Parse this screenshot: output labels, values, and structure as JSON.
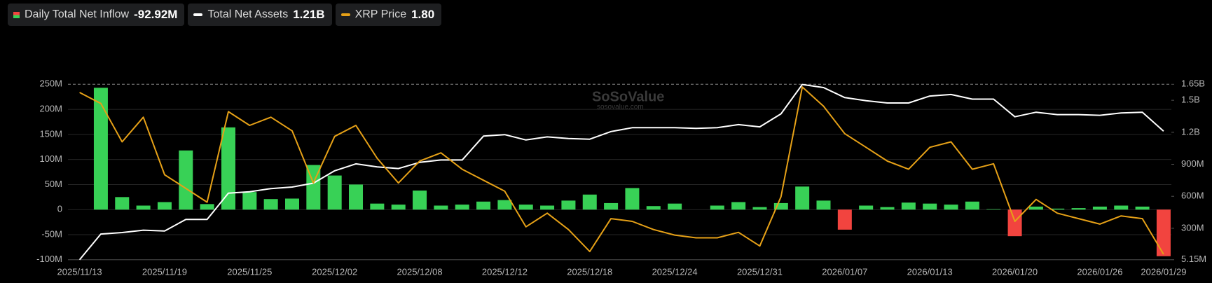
{
  "chart_data": {
    "type": "bar",
    "categories": [
      "2025/11/13",
      null,
      null,
      null,
      "2025/11/19",
      null,
      null,
      null,
      "2025/11/25",
      null,
      null,
      null,
      "2025/12/02",
      null,
      null,
      null,
      "2025/12/08",
      null,
      null,
      null,
      "2025/12/12",
      null,
      null,
      null,
      "2025/12/18",
      null,
      null,
      null,
      "2025/12/24",
      null,
      null,
      null,
      "2025/12/31",
      null,
      null,
      null,
      "2026/01/07",
      null,
      null,
      null,
      "2026/01/13",
      null,
      null,
      null,
      "2026/01/20",
      null,
      null,
      null,
      "2026/01/26",
      null,
      null,
      "2026/01/29"
    ],
    "series": [
      {
        "name": "Daily Total Net Inflow",
        "type": "bar",
        "latest_label": "-92.92M",
        "color": "#38d156",
        "negative_color": "#f2443f",
        "values": [
          null,
          243,
          25,
          8,
          15,
          118,
          11,
          164,
          35,
          21,
          22,
          89,
          68,
          50,
          12,
          10,
          38,
          8,
          10,
          16,
          19,
          10,
          8,
          18,
          30,
          13,
          43,
          7,
          12,
          0,
          8,
          15,
          5,
          13,
          46,
          18,
          -40,
          8,
          5,
          14,
          12,
          10,
          16,
          1,
          -53,
          6,
          2,
          3,
          6,
          8,
          6,
          -92.92
        ]
      },
      {
        "name": "Total Net Assets",
        "type": "line",
        "axis": "y2",
        "latest_label": "1.21B",
        "color": "#ffffff",
        "values": [
          5.15,
          246,
          260,
          282,
          275,
          383,
          383,
          629,
          643,
          672,
          687,
          723,
          839,
          904,
          875,
          860,
          918,
          940,
          940,
          1164,
          1178,
          1128,
          1157,
          1142,
          1135,
          1207,
          1243,
          1243,
          1243,
          1236,
          1243,
          1272,
          1251,
          1373,
          1648,
          1619,
          1525,
          1496,
          1475,
          1475,
          1540,
          1554,
          1511,
          1511,
          1345,
          1388,
          1366,
          1366,
          1359,
          1381,
          1388,
          1210
        ]
      },
      {
        "name": "XRP Price",
        "type": "line",
        "axis": "y3",
        "latest_label": "1.80",
        "color": "#e6a117",
        "values": [
          2.39,
          2.35,
          2.21,
          2.3,
          2.09,
          2.04,
          1.99,
          2.32,
          2.27,
          2.3,
          2.25,
          2.06,
          2.23,
          2.27,
          2.15,
          2.06,
          2.14,
          2.17,
          2.11,
          2.07,
          2.03,
          1.9,
          1.95,
          1.89,
          1.81,
          1.93,
          1.92,
          1.89,
          1.87,
          1.86,
          1.86,
          1.88,
          1.83,
          2.01,
          2.41,
          2.34,
          2.24,
          2.19,
          2.14,
          2.11,
          2.19,
          2.21,
          2.11,
          2.13,
          1.92,
          2.0,
          1.95,
          1.93,
          1.91,
          1.94,
          1.93,
          1.8
        ]
      }
    ],
    "ylim": [
      -100,
      250
    ],
    "yticks": [
      {
        "value": -100,
        "label": "-100M"
      },
      {
        "value": -50,
        "label": "-50M"
      },
      0,
      {
        "value": 50,
        "label": "50M"
      },
      {
        "value": 100,
        "label": "100M"
      },
      {
        "value": 150,
        "label": "150M"
      },
      {
        "value": 200,
        "label": "200M"
      },
      {
        "value": 250,
        "label": "250M"
      }
    ],
    "y2lim": [
      5.15,
      1650
    ],
    "y2ticks": [
      {
        "value": 5.15,
        "label": "5.15M"
      },
      {
        "value": 300,
        "label": "300M"
      },
      {
        "value": 600,
        "label": "600M"
      },
      {
        "value": 900,
        "label": "900M"
      },
      {
        "value": 1200,
        "label": "1.2B"
      },
      {
        "value": 1500,
        "label": "1.5B"
      },
      {
        "value": 1650,
        "label": "1.65B"
      }
    ],
    "y3lim": [
      1.78,
      2.42
    ],
    "grid": true,
    "watermark": {
      "brand": "SoSoValue",
      "site": "sosovalue.com"
    }
  }
}
